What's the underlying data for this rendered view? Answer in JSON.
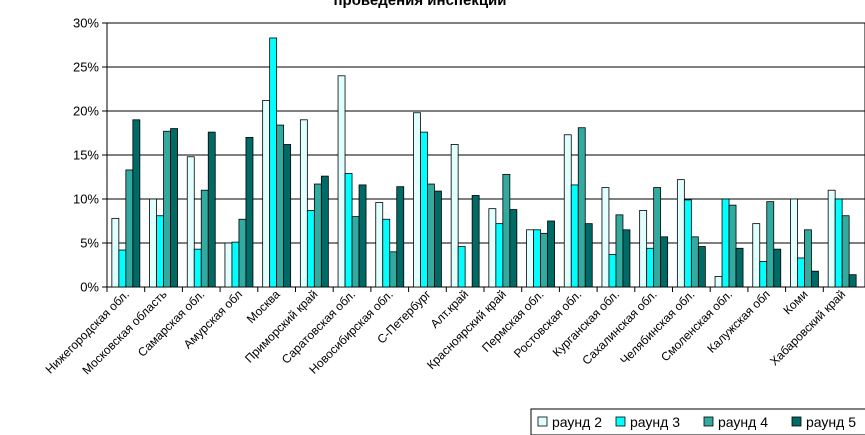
{
  "chart_data": {
    "type": "bar",
    "title": "проведения инспекции",
    "xlabel": "",
    "ylabel": "",
    "ylim": [
      0,
      30
    ],
    "yticks": [
      "0%",
      "5%",
      "10%",
      "15%",
      "20%",
      "25%",
      "30%"
    ],
    "grid": true,
    "legend_position": "bottom-right",
    "categories": [
      "Нижегородская обл.",
      "Московская область",
      "Самарская обл.",
      "Амурская обл",
      "Москва",
      "Приморский край",
      "Саратовская обл.",
      "Новосибирская обл.",
      "С-Петербург",
      "Алт.край",
      "Красноярский край",
      "Пермская обл.",
      "Ростовская обл.",
      "Курганская обл.",
      "Сахалинская обл.",
      "Челябинская обл.",
      "Смоленская обл.",
      "Калужская обл",
      "Коми",
      "Хабаровский край"
    ],
    "series": [
      {
        "name": "раунд 2",
        "color": "#e0ffff",
        "values": [
          7.8,
          10.0,
          14.8,
          5.0,
          21.2,
          19.0,
          24.0,
          9.6,
          19.8,
          16.2,
          8.9,
          6.5,
          17.3,
          11.3,
          8.7,
          12.2,
          1.2,
          7.2,
          10.0,
          11.0
        ]
      },
      {
        "name": "раунд 3",
        "color": "#00ffff",
        "values": [
          4.2,
          8.1,
          4.3,
          5.1,
          28.3,
          8.7,
          12.9,
          7.7,
          17.6,
          4.6,
          7.2,
          6.5,
          11.6,
          3.7,
          4.4,
          9.9,
          10.0,
          2.9,
          3.3,
          10.0
        ]
      },
      {
        "name": "раунд 4",
        "color": "#33aaa0",
        "values": [
          13.3,
          17.7,
          11.0,
          7.7,
          18.4,
          11.7,
          8.0,
          4.0,
          11.7,
          0,
          12.8,
          6.1,
          18.1,
          8.2,
          11.3,
          5.7,
          9.3,
          9.7,
          6.5,
          8.1
        ]
      },
      {
        "name": "раунд 5",
        "color": "#006b66",
        "values": [
          19.0,
          18.0,
          17.6,
          17.0,
          16.2,
          12.6,
          11.6,
          11.4,
          10.9,
          10.4,
          8.8,
          7.5,
          7.2,
          6.5,
          5.7,
          4.6,
          4.4,
          4.3,
          1.8,
          1.4
        ]
      }
    ]
  }
}
